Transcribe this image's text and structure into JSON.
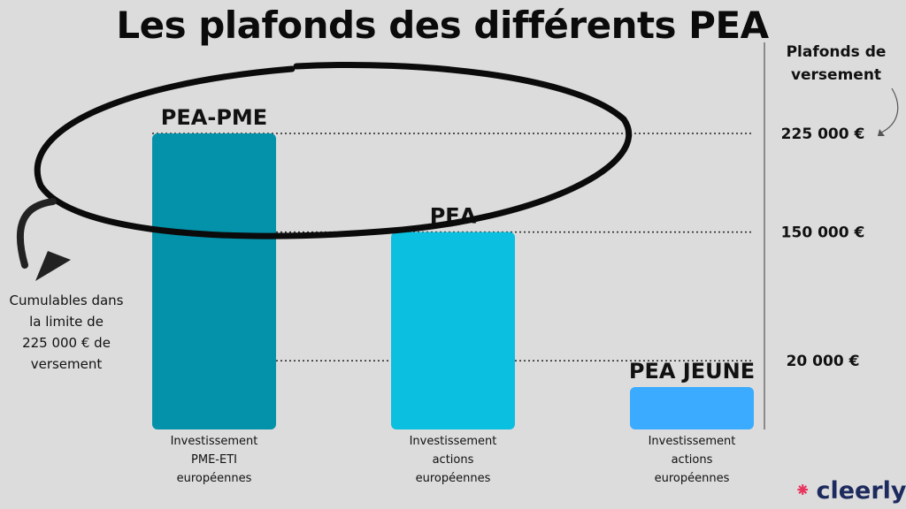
{
  "chart_data": {
    "type": "bar",
    "title": "Les plafonds des différents PEA",
    "categories": [
      "PEA-PME",
      "PEA",
      "PEA JEUNE"
    ],
    "category_descriptions": [
      [
        "Investissement",
        "PME-ETI",
        "européennes"
      ],
      [
        "Investissement",
        "actions",
        "européennes"
      ],
      [
        "Investissement",
        "actions",
        "européennes"
      ]
    ],
    "values": [
      225000,
      150000,
      20000
    ],
    "cap_lines": [
      225000,
      150000,
      20000
    ],
    "cap_labels": [
      "225 000 €",
      "150 000 €",
      "20 000 €"
    ],
    "ylim": [
      0,
      225000
    ],
    "colors": [
      "#0392aa",
      "#0bbfe0",
      "#3aabff"
    ],
    "legend_title": [
      "Plafonds de",
      "versement"
    ],
    "annotation": [
      "Cumulables dans",
      "la limite de",
      "225 000 € de",
      "versement"
    ]
  },
  "brand": {
    "name": "cleerly",
    "mark": "⁕"
  }
}
